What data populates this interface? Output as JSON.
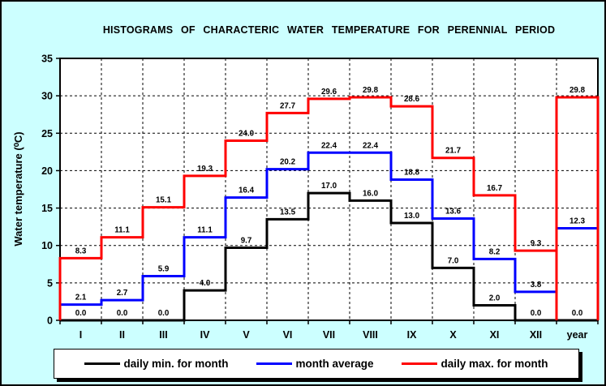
{
  "window": {
    "background": "#CCFFFF",
    "plot_background": "#FFFFFF"
  },
  "title": "HISTOGRAMS OF CHARACTERIC WATER TEMPERATURE FOR PERENNIAL PERIOD",
  "axis": {
    "y_label": "Water temperature (⁰C)",
    "y_ticks": [
      "0",
      "5",
      "10",
      "15",
      "20",
      "25",
      "30",
      "35"
    ]
  },
  "chart_data": {
    "type": "line",
    "subtype": "step-histogram",
    "title": "HISTOGRAMS OF CHARACTERIC WATER TEMPERATURE FOR PERENNIAL PERIOD",
    "xlabel": "",
    "ylabel": "Water temperature (⁰C)",
    "ylim": [
      0,
      35
    ],
    "ytick_interval": 5,
    "grid": "dashed",
    "legend_position": "bottom",
    "categories": [
      "I",
      "II",
      "III",
      "IV",
      "V",
      "VI",
      "VII",
      "VIII",
      "IX",
      "X",
      "XI",
      "XII",
      "year"
    ],
    "series": [
      {
        "id": "daily-min",
        "name": "daily min. for month",
        "color": "#000000",
        "values": [
          0.0,
          0.0,
          0.0,
          4.0,
          9.7,
          13.5,
          17.0,
          16.0,
          13.0,
          7.0,
          2.0,
          0.0,
          0.0
        ]
      },
      {
        "id": "month-average",
        "name": "month average",
        "color": "#0000FF",
        "values": [
          2.1,
          2.7,
          5.9,
          11.1,
          16.4,
          20.2,
          22.4,
          22.4,
          18.8,
          13.6,
          8.2,
          3.8,
          12.3
        ]
      },
      {
        "id": "daily-max",
        "name": "daily max. for month",
        "color": "#FF0000",
        "values": [
          8.3,
          11.1,
          15.1,
          19.3,
          24.0,
          27.7,
          29.6,
          29.8,
          28.6,
          21.7,
          16.7,
          9.3,
          29.8
        ]
      }
    ]
  },
  "legend": {
    "items": [
      {
        "label": "daily min. for month",
        "color": "#000000"
      },
      {
        "label": "month average",
        "color": "#0000FF"
      },
      {
        "label": "daily max. for month",
        "color": "#FF0000"
      }
    ]
  }
}
